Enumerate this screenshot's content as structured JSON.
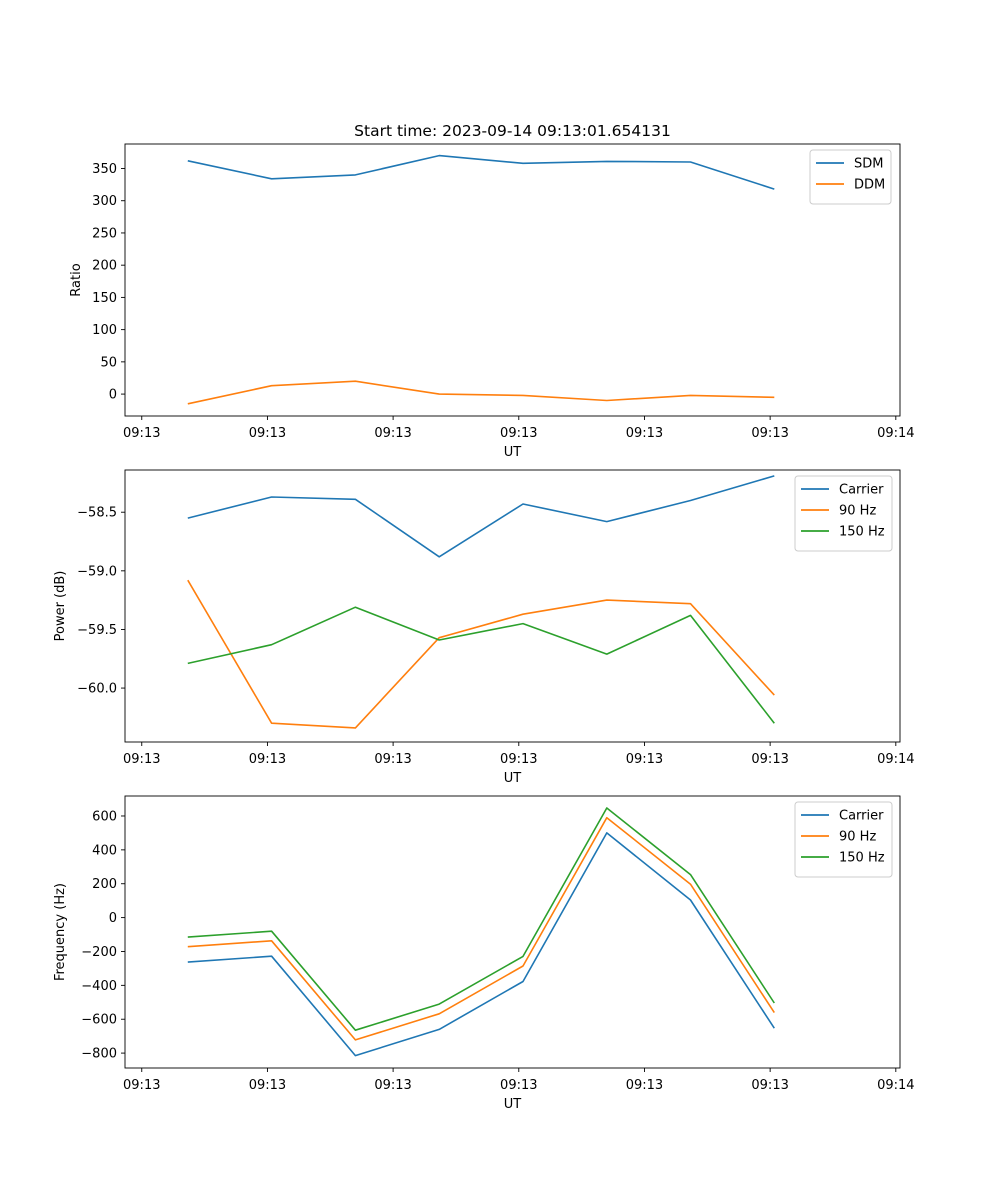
{
  "figure_title": "Start time: 2023-09-14 09:13:01.654131",
  "colors": {
    "blue": "#1f77b4",
    "orange": "#ff7f0e",
    "green": "#2ca02c"
  },
  "chart_data": [
    {
      "type": "line",
      "title": "Start time: 2023-09-14 09:13:01.654131",
      "xlabel": "UT",
      "ylabel": "Ratio",
      "x": [
        1,
        2,
        3,
        4,
        5,
        6,
        7,
        8
      ],
      "xlim": [
        0.25,
        9.5
      ],
      "x_ticks": [
        0.45,
        1.95,
        3.45,
        4.95,
        6.45,
        7.95,
        9.45
      ],
      "x_tick_labels": [
        "09:13",
        "09:13",
        "09:13",
        "09:13",
        "09:13",
        "09:13",
        "09:14"
      ],
      "ylim": [
        -34,
        388
      ],
      "y_ticks": [
        0,
        50,
        100,
        150,
        200,
        250,
        300,
        350
      ],
      "y_tick_labels": [
        "0",
        "50",
        "100",
        "150",
        "200",
        "250",
        "300",
        "350"
      ],
      "legend": "upper right",
      "series": [
        {
          "name": "SDM",
          "color": "#1f77b4",
          "values": [
            362,
            334,
            340,
            370,
            358,
            361,
            360,
            318
          ]
        },
        {
          "name": "DDM",
          "color": "#ff7f0e",
          "values": [
            -15,
            13,
            20,
            0,
            -2,
            -10,
            -2,
            -5
          ]
        }
      ]
    },
    {
      "type": "line",
      "title": "",
      "xlabel": "UT",
      "ylabel": "Power (dB)",
      "x": [
        1,
        2,
        3,
        4,
        5,
        6,
        7,
        8
      ],
      "xlim": [
        0.25,
        9.5
      ],
      "x_ticks": [
        0.45,
        1.95,
        3.45,
        4.95,
        6.45,
        7.95,
        9.45
      ],
      "x_tick_labels": [
        "09:13",
        "09:13",
        "09:13",
        "09:13",
        "09:13",
        "09:13",
        "09:14"
      ],
      "ylim": [
        -60.46,
        -58.14
      ],
      "y_ticks": [
        -60.0,
        -59.5,
        -59.0,
        -58.5
      ],
      "y_tick_labels": [
        "−60.0",
        "−59.5",
        "−59.0",
        "−58.5"
      ],
      "legend": "upper right",
      "series": [
        {
          "name": "Carrier",
          "color": "#1f77b4",
          "values": [
            -58.55,
            -58.37,
            -58.39,
            -58.88,
            -58.43,
            -58.58,
            -58.4,
            -58.19
          ]
        },
        {
          "name": "90 Hz",
          "color": "#ff7f0e",
          "values": [
            -59.08,
            -60.3,
            -60.34,
            -59.57,
            -59.37,
            -59.25,
            -59.28,
            -60.06
          ]
        },
        {
          "name": "150 Hz",
          "color": "#2ca02c",
          "values": [
            -59.79,
            -59.63,
            -59.31,
            -59.59,
            -59.45,
            -59.71,
            -59.38,
            -60.3
          ]
        }
      ]
    },
    {
      "type": "line",
      "title": "",
      "xlabel": "UT",
      "ylabel": "Frequency (Hz)",
      "x": [
        1,
        2,
        3,
        4,
        5,
        6,
        7,
        8
      ],
      "xlim": [
        0.25,
        9.5
      ],
      "x_ticks": [
        0.45,
        1.95,
        3.45,
        4.95,
        6.45,
        7.95,
        9.45
      ],
      "x_tick_labels": [
        "09:13",
        "09:13",
        "09:13",
        "09:13",
        "09:13",
        "09:13",
        "09:14"
      ],
      "ylim": [
        -888,
        718
      ],
      "y_ticks": [
        -800,
        -600,
        -400,
        -200,
        0,
        200,
        400,
        600
      ],
      "y_tick_labels": [
        "−800",
        "−600",
        "−400",
        "−200",
        "0",
        "200",
        "400",
        "600"
      ],
      "legend": "upper right",
      "series": [
        {
          "name": "Carrier",
          "color": "#1f77b4",
          "values": [
            -263,
            -228,
            -815,
            -660,
            -377,
            500,
            104,
            -653
          ]
        },
        {
          "name": "90 Hz",
          "color": "#ff7f0e",
          "values": [
            -172,
            -137,
            -722,
            -568,
            -286,
            590,
            197,
            -561
          ]
        },
        {
          "name": "150 Hz",
          "color": "#2ca02c",
          "values": [
            -115,
            -80,
            -665,
            -511,
            -229,
            647,
            254,
            -504
          ]
        }
      ]
    }
  ]
}
